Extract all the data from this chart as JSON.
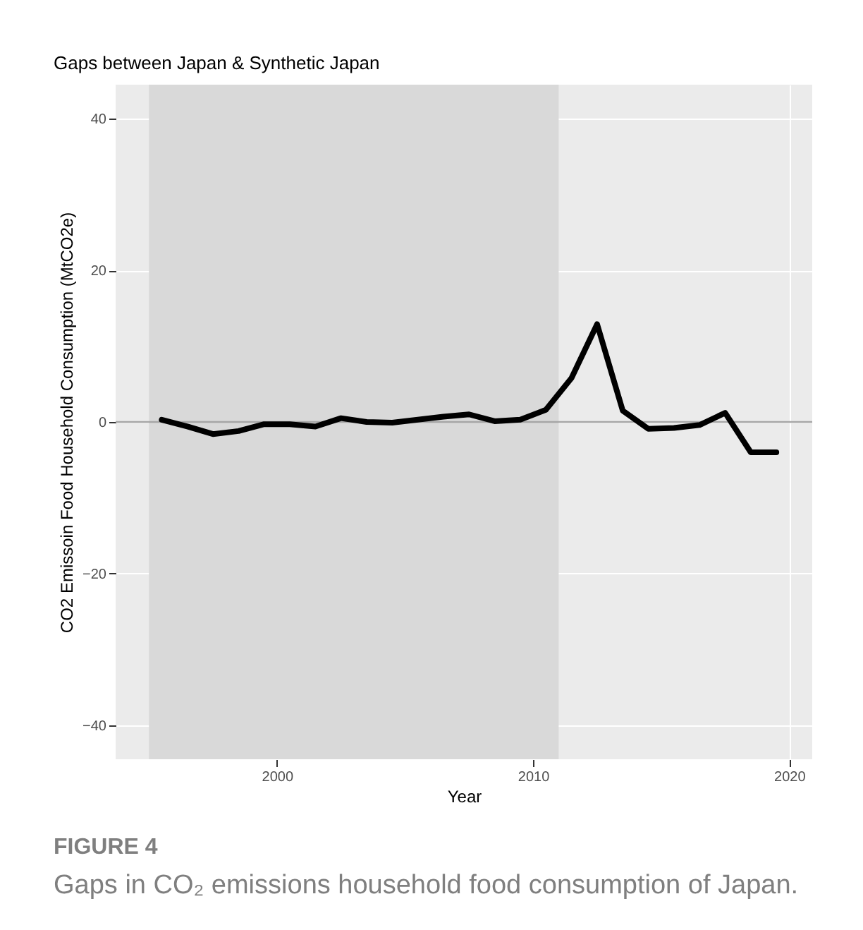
{
  "chart_data": {
    "type": "line",
    "title": "Gaps between Japan & Synthetic Japan",
    "xlabel": "Year",
    "ylabel": "CO2 Emissoin Food Household Consumption (MtCO2e)",
    "x": [
      1995.5,
      1996.5,
      1997.5,
      1998.5,
      1999.5,
      2000.5,
      2001.5,
      2002.5,
      2003.5,
      2004.5,
      2005.5,
      2006.5,
      2007.5,
      2008.5,
      2009.5,
      2010.5,
      2011.5,
      2012.5,
      2013.5,
      2014.5,
      2015.5,
      2016.5,
      2017.5,
      2018.5,
      2019.5
    ],
    "series": [
      {
        "color": "#000000",
        "values": [
          0.3,
          -0.6,
          -1.6,
          -1.2,
          -0.3,
          -0.3,
          -0.6,
          0.5,
          0.0,
          -0.1,
          0.3,
          0.7,
          1.0,
          0.1,
          0.3,
          1.6,
          5.8,
          12.9,
          1.5,
          -0.9,
          -0.8,
          -0.4,
          1.2,
          -4.0,
          -4.0
        ]
      }
    ],
    "xlim": [
      1993.7,
      2020.9
    ],
    "ylim": [
      -44.5,
      44.5
    ],
    "xticks": [
      2000,
      2010,
      2020
    ],
    "yticks": [
      -40,
      -20,
      0,
      20,
      40
    ],
    "bands": [
      {
        "axis": "x",
        "from": 1995,
        "to": 2011,
        "color": "#d9d9d9"
      }
    ],
    "ref_lines": [
      {
        "axis": "y",
        "value": 0,
        "color": "#a6a6a6"
      }
    ],
    "grid": true,
    "annotations": [
      "FIGURE 4",
      "Gaps in CO₂ emissions household food consumption of Japan."
    ]
  }
}
